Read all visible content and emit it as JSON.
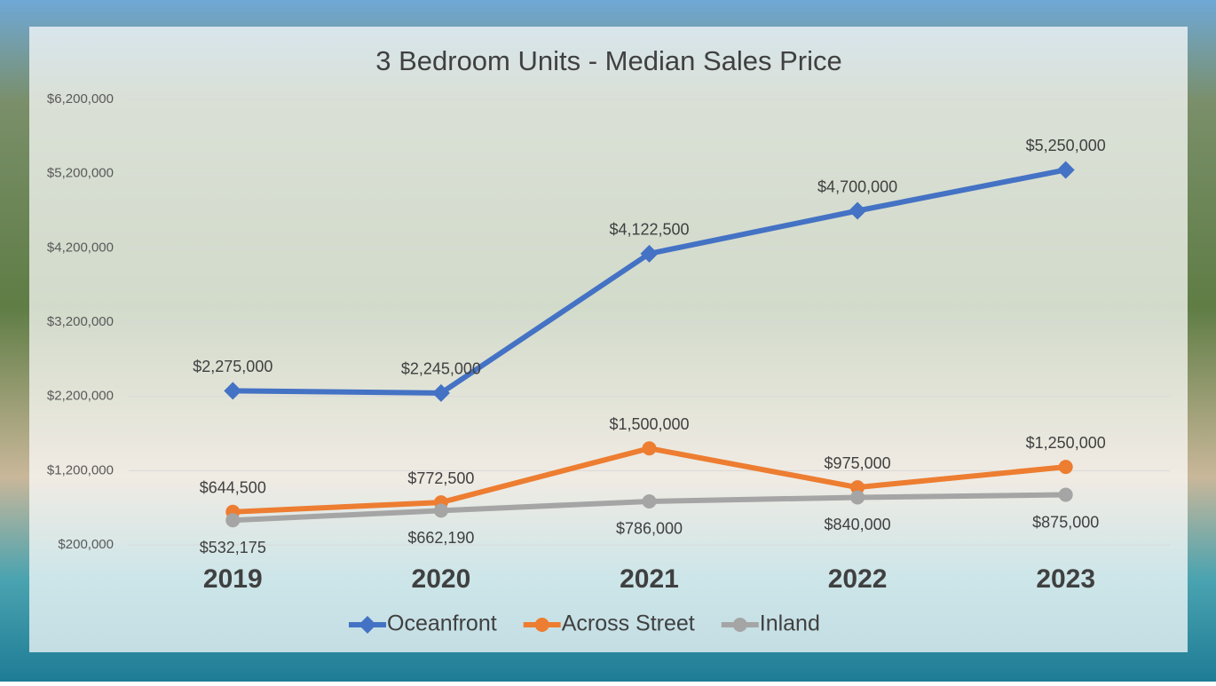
{
  "chart_data": {
    "type": "line",
    "title": "3  Bedroom Units - Median Sales Price",
    "categories": [
      "2019",
      "2020",
      "2021",
      "2022",
      "2023"
    ],
    "ylim": [
      200000,
      6200000
    ],
    "yticks": [
      {
        "value": 200000,
        "label": "$200,000"
      },
      {
        "value": 1200000,
        "label": "$1,200,000"
      },
      {
        "value": 2200000,
        "label": "$2,200,000"
      },
      {
        "value": 3200000,
        "label": "$3,200,000"
      },
      {
        "value": 4200000,
        "label": "$4,200,000"
      },
      {
        "value": 5200000,
        "label": "$5,200,000"
      },
      {
        "value": 6200000,
        "label": "$6,200,000"
      }
    ],
    "grid": true,
    "legend": "bottom",
    "series": [
      {
        "name": "Oceanfront",
        "color": "#4472c4",
        "marker": "diamond",
        "label_position": "above",
        "values": [
          2275000,
          2245000,
          4122500,
          4700000,
          5250000
        ],
        "value_labels": [
          "$2,275,000",
          "$2,245,000",
          "$4,122,500",
          "$4,700,000",
          "$5,250,000"
        ]
      },
      {
        "name": "Across Street",
        "color": "#ed7d31",
        "marker": "circle",
        "label_position": "above",
        "values": [
          644500,
          772500,
          1500000,
          975000,
          1250000
        ],
        "value_labels": [
          "$644,500",
          "$772,500",
          "$1,500,000",
          "$975,000",
          "$1,250,000"
        ]
      },
      {
        "name": "Inland",
        "color": "#a5a5a5",
        "marker": "circle",
        "label_position": "below",
        "values": [
          532175,
          662190,
          786000,
          840000,
          875000
        ],
        "value_labels": [
          "$532,175",
          "$662,190",
          "$786,000",
          "$840,000",
          "$875,000"
        ]
      }
    ]
  }
}
